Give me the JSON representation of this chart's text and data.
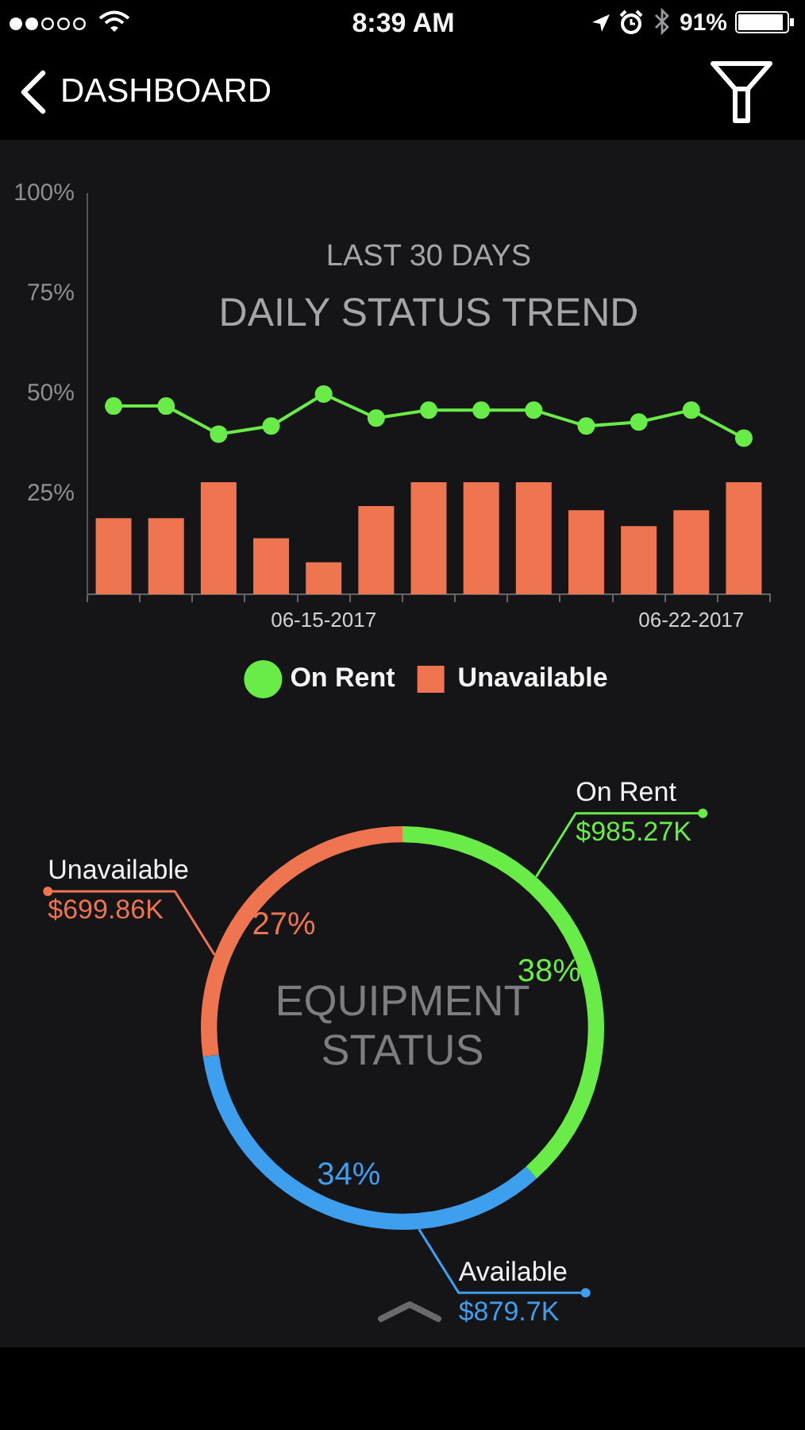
{
  "chart_data": [
    {
      "type": "bar",
      "title": "DAILY STATUS TREND",
      "subtitle": "LAST 30 DAYS",
      "categories": [
        null,
        null,
        null,
        null,
        "06-15-2017",
        null,
        null,
        null,
        null,
        null,
        null,
        "06-22-2017",
        null
      ],
      "series": [
        {
          "name": "On Rent",
          "type": "line",
          "color": "#69ec48",
          "values": [
            47,
            47,
            40,
            42,
            50,
            44,
            46,
            46,
            46,
            42,
            43,
            46,
            39
          ]
        },
        {
          "name": "Unavailable",
          "type": "bar",
          "color": "#ef7450",
          "values": [
            19,
            19,
            28,
            14,
            8,
            22,
            28,
            28,
            28,
            21,
            17,
            21,
            28
          ]
        }
      ],
      "ylim": [
        0,
        100
      ],
      "yticks": [
        {
          "value": 25,
          "label": "25%"
        },
        {
          "value": 50,
          "label": "50%"
        },
        {
          "value": 75,
          "label": "75%"
        },
        {
          "value": 100,
          "label": "100%"
        }
      ],
      "legend": "bottom",
      "marker": "circle",
      "annotations": [
        "8:39 AM",
        "91%",
        "DASHBOARD"
      ]
    },
    {
      "type": "donut",
      "title": "EQUIPMENT STATUS",
      "categories": [
        "On Rent",
        "Available",
        "Unavailable"
      ],
      "values": [
        985.27,
        879.7,
        699.86
      ],
      "colors": [
        "#69ec48",
        "#3f9fef",
        "#ef7450"
      ],
      "value_labels": [
        "$985.27K",
        "$879.7K",
        "$699.86K"
      ],
      "annotations": [
        {
          "text": "38%",
          "x": "On Rent"
        },
        {
          "text": "34%",
          "x": "Available"
        },
        {
          "text": "27%",
          "x": "Unavailable"
        }
      ]
    }
  ]
}
